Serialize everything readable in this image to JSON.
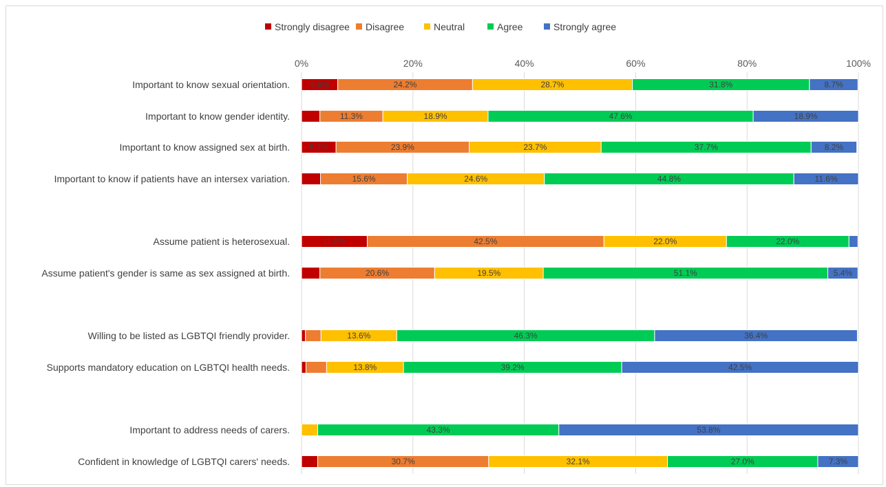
{
  "chart_data": {
    "type": "bar",
    "orientation": "horizontal",
    "stacked": "percent",
    "xlim": [
      0,
      100
    ],
    "x_ticks": [
      "0%",
      "20%",
      "40%",
      "60%",
      "80%",
      "100%"
    ],
    "grid": "vertical",
    "legend_position": "top",
    "categories": [
      "Important to know sexual orientation.",
      "Important to know gender identity.",
      "Important to know  assigned sex at birth.",
      "Important to know if patients have an intersex variation.",
      "Assume patient is heterosexual.",
      "Assume patient's gender is same as sex assigned at birth.",
      "Willing to be listed as LGBTQI friendly provider.",
      "Supports mandatory education on LGBTQI health needs.",
      "Important to address needs of carers.",
      "Confident in knowledge of LGBTQI carers' needs."
    ],
    "series": [
      {
        "name": "Strongly disagree",
        "color": "#c00000",
        "values": [
          6.5,
          3.3,
          6.2,
          3.4,
          11.8,
          3.3,
          0.7,
          0.8,
          0.0,
          2.9
        ],
        "labels": [
          "6.5%",
          "",
          "6.2%",
          "",
          "11.8%",
          "",
          "",
          "",
          "",
          ""
        ]
      },
      {
        "name": "Disagree",
        "color": "#ed7d31",
        "values": [
          24.2,
          11.3,
          23.9,
          15.6,
          42.5,
          20.6,
          2.8,
          3.7,
          0.0,
          30.7
        ],
        "labels": [
          "24.2%",
          "11.3%",
          "23.9%",
          "15.6%",
          "42.5%",
          "20.6%",
          "",
          "",
          "",
          "30.7%"
        ]
      },
      {
        "name": "Neutral",
        "color": "#ffc000",
        "values": [
          28.7,
          18.9,
          23.7,
          24.6,
          22.0,
          19.5,
          13.6,
          13.8,
          2.9,
          32.1
        ],
        "labels": [
          "28.7%",
          "18.9%",
          "23.7%",
          "24.6%",
          "22.0%",
          "19.5%",
          "13.6%",
          "13.8%",
          "",
          "32.1%"
        ]
      },
      {
        "name": "Agree",
        "color": "#00cc55",
        "values": [
          31.8,
          47.6,
          37.7,
          44.8,
          22.0,
          51.1,
          46.3,
          39.2,
          43.3,
          27.0
        ],
        "labels": [
          "31.8%",
          "47.6%",
          "37.7%",
          "44.8%",
          "22.0%",
          "51.1%",
          "46.3%",
          "39.2%",
          "43.3%",
          "27.0%"
        ]
      },
      {
        "name": "Strongly agree",
        "color": "#4472c4",
        "values": [
          8.7,
          18.9,
          8.2,
          11.6,
          1.6,
          5.4,
          36.4,
          42.5,
          53.8,
          7.3
        ],
        "labels": [
          "8.7%",
          "18.9%",
          "8.2%",
          "11.6%",
          "",
          "5.4%",
          "36.4%",
          "42.5%",
          "53.8%",
          "7.3%"
        ]
      }
    ]
  }
}
